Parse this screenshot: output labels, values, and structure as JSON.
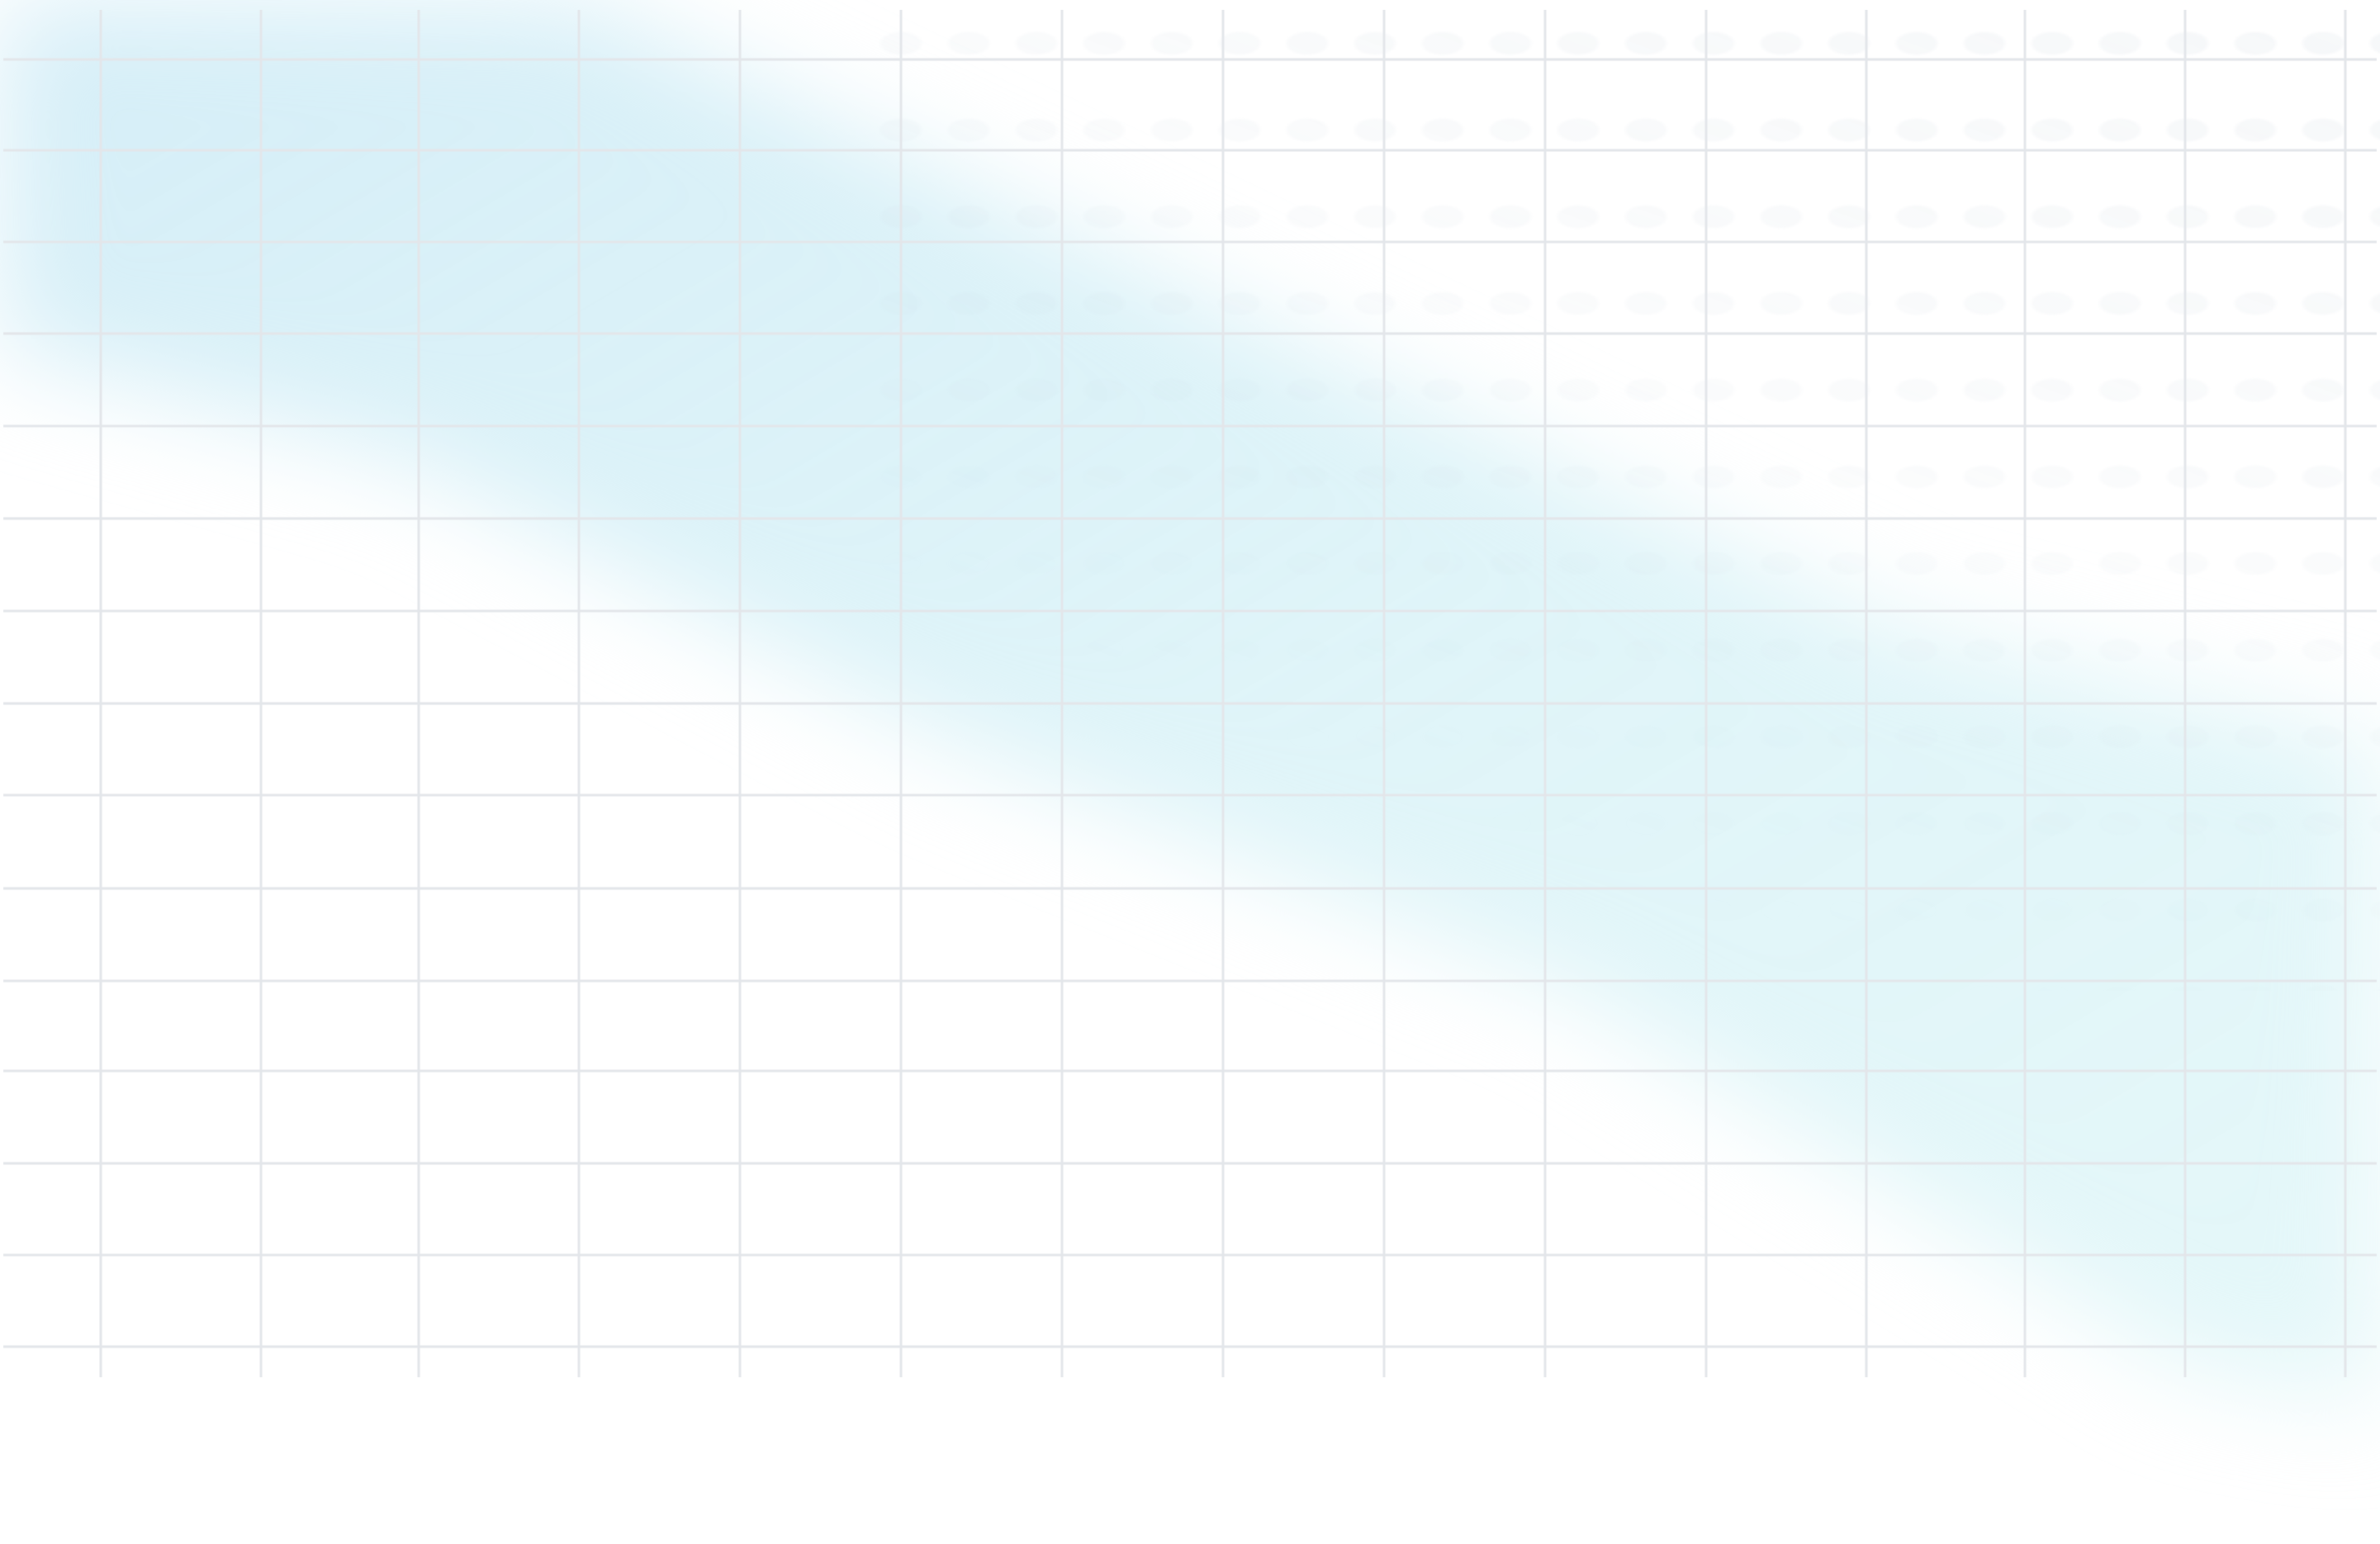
{
  "background": {
    "base_color": "#ffffff",
    "glow_color": "#d8f0f8",
    "glow_color_end": "#dff6f8",
    "grid_line_color": "#e3e6ea"
  }
}
